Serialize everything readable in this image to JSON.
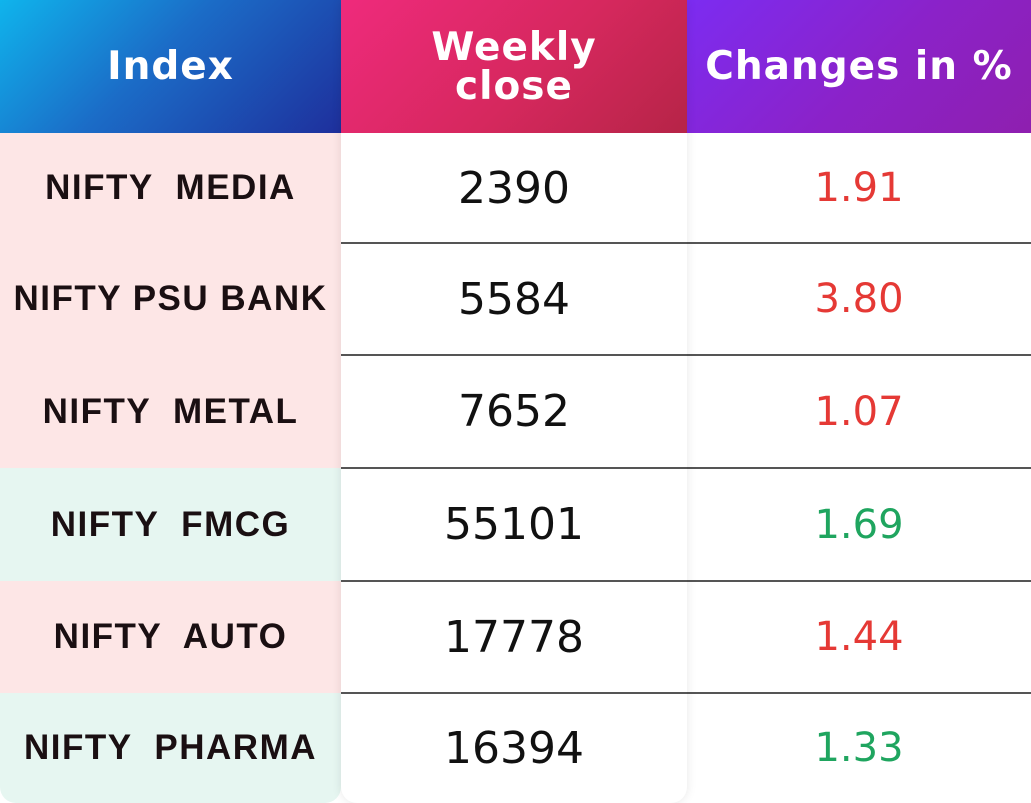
{
  "headers": {
    "index": "Index",
    "weekly_close": "Weekly close",
    "changes": "Changes in %"
  },
  "rows": [
    {
      "index": "NIFTY  MEDIA",
      "weekly_close": "2390",
      "change": "1.91",
      "trend": "down"
    },
    {
      "index": "NIFTY PSU BANK",
      "weekly_close": "5584",
      "change": "3.80",
      "trend": "down"
    },
    {
      "index": "NIFTY  METAL",
      "weekly_close": "7652",
      "change": "1.07",
      "trend": "down"
    },
    {
      "index": "NIFTY  FMCG",
      "weekly_close": "55101",
      "change": "1.69",
      "trend": "up"
    },
    {
      "index": "NIFTY  AUTO",
      "weekly_close": "17778",
      "change": "1.44",
      "trend": "down"
    },
    {
      "index": "NIFTY  PHARMA",
      "weekly_close": "16394",
      "change": "1.33",
      "trend": "up"
    }
  ],
  "colors": {
    "down_text": "#e53935",
    "up_text": "#1fa55f",
    "down_bg": "#fde6e6",
    "up_bg": "#e6f6f1"
  }
}
